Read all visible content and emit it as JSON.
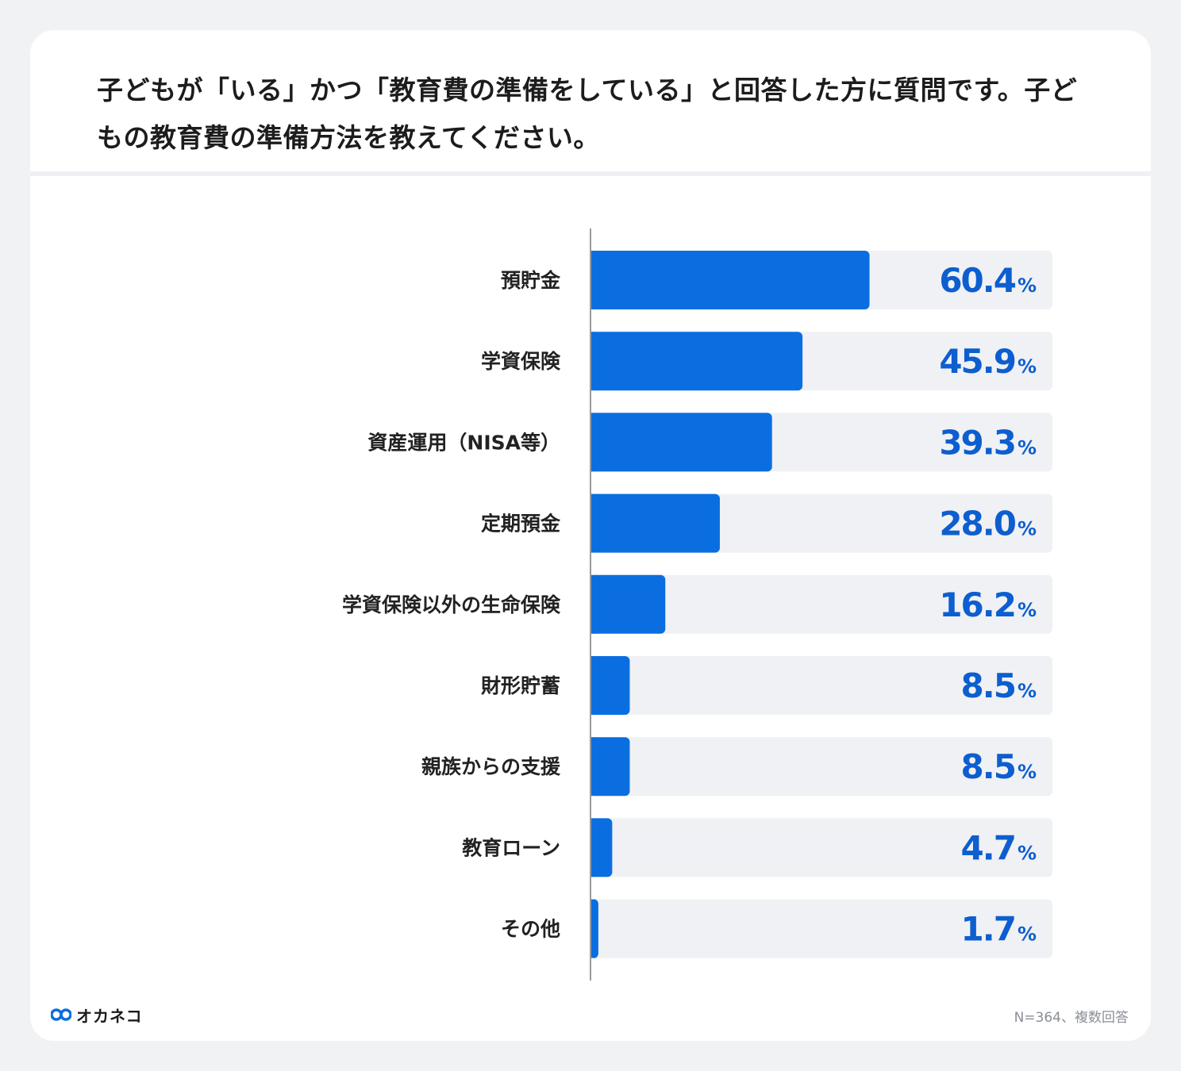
{
  "title": "子どもが「いる」かつ「教育費の準備をしている」と回答した方に質問です。子どもの教育費の準備方法を教えてください。",
  "brand": {
    "logo_name": "オカネコ",
    "logo_icon": "okaneko-logo-icon",
    "color": "#0b6ee0"
  },
  "note": "N=364、複数回答",
  "colors": {
    "bar": "#0b6ee0",
    "track": "#f0f1f4",
    "value_text": "#0d5ecf",
    "axis": "#9a9a9a",
    "label_text": "#222222"
  },
  "chart_data": {
    "type": "bar",
    "orientation": "horizontal",
    "categories": [
      "預貯金",
      "学資保険",
      "資産運用（NISA等）",
      "定期預金",
      "学資保険以外の生命保険",
      "財形貯蓄",
      "親族からの支援",
      "教育ローン",
      "その他"
    ],
    "values": [
      60.4,
      45.9,
      39.3,
      28.0,
      16.2,
      8.5,
      8.5,
      4.7,
      1.7
    ],
    "value_labels": [
      "60.4",
      "45.9",
      "39.3",
      "28.0",
      "16.2",
      "8.5",
      "8.5",
      "4.7",
      "1.7"
    ],
    "unit": "%",
    "xlim": [
      0,
      100
    ],
    "title": "",
    "xlabel": "",
    "ylabel": ""
  }
}
